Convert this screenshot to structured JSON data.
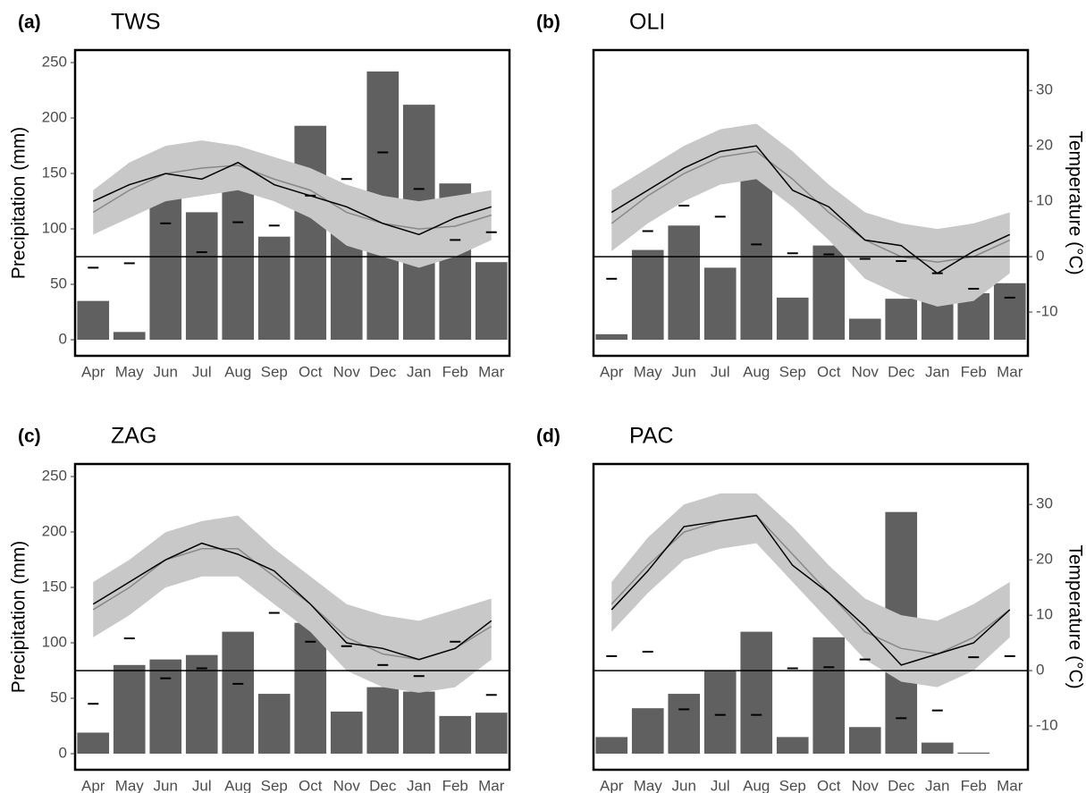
{
  "chart_data": [
    {
      "type": "bar",
      "panel_label": "(a)",
      "title": "TWS",
      "ylabel": "Precipitation (mm)",
      "categories": [
        "Apr",
        "May",
        "Jun",
        "Jul",
        "Aug",
        "Sep",
        "Oct",
        "Nov",
        "Dec",
        "Jan",
        "Feb",
        "Mar"
      ],
      "ylim": [
        -14.5,
        261.3
      ],
      "yticks": [
        0,
        50,
        100,
        150,
        200,
        250
      ],
      "y2lim": [
        -17.9,
        37.3
      ],
      "zero_line_y2": 0,
      "series": [
        {
          "type": "bar",
          "color": "#606060",
          "values": [
            35,
            7,
            150,
            115,
            150,
            93,
            193,
            110,
            242,
            212,
            141,
            70
          ]
        },
        {
          "type": "band",
          "axis": "y2",
          "color": "#c8c8c8",
          "lower": [
            4,
            7,
            10,
            11,
            12,
            10,
            7,
            2,
            0,
            -2,
            0,
            3
          ],
          "upper": [
            12,
            17,
            20,
            21,
            20,
            18,
            16,
            13,
            11,
            10,
            11,
            12
          ]
        },
        {
          "type": "line",
          "axis": "y2",
          "color": "#888888",
          "values": [
            8,
            12,
            15,
            16,
            16.5,
            14,
            12,
            8,
            6,
            5,
            5.5,
            7.5
          ]
        },
        {
          "type": "line",
          "axis": "y2",
          "color": "#000000",
          "values": [
            10,
            13,
            15,
            14,
            17,
            13,
            11,
            9,
            6,
            4,
            7,
            9
          ]
        },
        {
          "type": "dash",
          "color": "#000000",
          "values": [
            65,
            69,
            105,
            79,
            106,
            103,
            130,
            145,
            169,
            136,
            90,
            97
          ]
        }
      ]
    },
    {
      "type": "bar",
      "panel_label": "(b)",
      "title": "OLI",
      "y2label": "Temperature (°C)",
      "categories": [
        "Apr",
        "May",
        "Jun",
        "Jul",
        "Aug",
        "Sep",
        "Oct",
        "Nov",
        "Dec",
        "Jan",
        "Feb",
        "Mar"
      ],
      "ylim": [
        -14.5,
        261.3
      ],
      "y2lim": [
        -17.9,
        37.3
      ],
      "y2ticks": [
        -10,
        0,
        10,
        20,
        30
      ],
      "zero_line_y2": 0,
      "series": [
        {
          "type": "bar",
          "color": "#606060",
          "values": [
            5,
            81,
            103,
            65,
            145,
            38,
            85,
            19,
            37,
            48,
            42,
            51
          ]
        },
        {
          "type": "band",
          "axis": "y2",
          "color": "#c8c8c8",
          "lower": [
            1,
            6,
            10,
            13,
            14,
            9,
            3,
            -4,
            -7,
            -9,
            -8,
            -3
          ],
          "upper": [
            12,
            16,
            20,
            23,
            24,
            19,
            13,
            8,
            6,
            5,
            6,
            8
          ]
        },
        {
          "type": "line",
          "axis": "y2",
          "color": "#888888",
          "values": [
            6,
            11,
            15,
            18,
            19,
            14,
            8,
            3,
            0,
            -1,
            0,
            3
          ]
        },
        {
          "type": "line",
          "axis": "y2",
          "color": "#000000",
          "values": [
            8,
            12,
            16,
            19,
            20,
            12,
            9,
            3,
            2,
            -3,
            1,
            4
          ]
        },
        {
          "type": "dash",
          "color": "#000000",
          "values": [
            55,
            98,
            121,
            111,
            86,
            78,
            77,
            73,
            71,
            60,
            46,
            38
          ]
        }
      ]
    },
    {
      "type": "bar",
      "panel_label": "(c)",
      "title": "ZAG",
      "ylabel": "Precipitation (mm)",
      "categories": [
        "Apr",
        "May",
        "Jun",
        "Jul",
        "Aug",
        "Sep",
        "Oct",
        "Nov",
        "Dec",
        "Jan",
        "Feb",
        "Mar"
      ],
      "ylim": [
        -14.5,
        261.3
      ],
      "yticks": [
        0,
        50,
        100,
        150,
        200,
        250
      ],
      "y2lim": [
        -17.9,
        37.3
      ],
      "zero_line_y2": 0,
      "series": [
        {
          "type": "bar",
          "color": "#606060",
          "values": [
            19,
            80,
            85,
            89,
            110,
            54,
            118,
            38,
            60,
            56,
            34,
            37
          ]
        },
        {
          "type": "band",
          "axis": "y2",
          "color": "#c8c8c8",
          "lower": [
            6,
            10,
            15,
            17,
            17,
            12,
            7,
            0,
            -3,
            -4,
            -3,
            2
          ],
          "upper": [
            16,
            20,
            25,
            27,
            28,
            22,
            17,
            12,
            10,
            9,
            11,
            13
          ]
        },
        {
          "type": "line",
          "axis": "y2",
          "color": "#888888",
          "values": [
            11,
            15,
            20,
            22,
            22,
            17,
            12,
            6,
            3,
            2,
            4,
            8
          ]
        },
        {
          "type": "line",
          "axis": "y2",
          "color": "#000000",
          "values": [
            12,
            16,
            20,
            23,
            21,
            18,
            12,
            5,
            4,
            2,
            4,
            9
          ]
        },
        {
          "type": "dash",
          "color": "#000000",
          "values": [
            45,
            104,
            68,
            77,
            63,
            127,
            101,
            97,
            80,
            70,
            101,
            53
          ]
        }
      ]
    },
    {
      "type": "bar",
      "panel_label": "(d)",
      "title": "PAC",
      "y2label": "Temperature (°C)",
      "categories": [
        "Apr",
        "May",
        "Jun",
        "Jul",
        "Aug",
        "Sep",
        "Oct",
        "Nov",
        "Dec",
        "Jan",
        "Feb",
        "Mar"
      ],
      "ylim": [
        -14.5,
        261.3
      ],
      "y2lim": [
        -17.9,
        37.3
      ],
      "y2ticks": [
        -10,
        0,
        10,
        20,
        30
      ],
      "zero_line_y2": 0,
      "series": [
        {
          "type": "bar",
          "color": "#606060",
          "values": [
            15,
            41,
            54,
            75,
            110,
            15,
            105,
            24,
            218,
            10,
            1,
            0
          ]
        },
        {
          "type": "band",
          "axis": "y2",
          "color": "#c8c8c8",
          "lower": [
            7,
            14,
            20,
            22,
            23,
            16,
            9,
            2,
            -2,
            -3,
            0,
            6
          ],
          "upper": [
            16,
            24,
            30,
            32,
            32,
            26,
            19,
            13,
            10,
            9,
            12,
            16
          ]
        },
        {
          "type": "line",
          "axis": "y2",
          "color": "#888888",
          "values": [
            12,
            19,
            25,
            27,
            28,
            21,
            14,
            7,
            4,
            3,
            6,
            11
          ]
        },
        {
          "type": "line",
          "axis": "y2",
          "color": "#000000",
          "values": [
            11,
            18,
            26,
            27,
            28,
            19,
            14,
            8,
            1,
            3,
            5,
            11
          ]
        },
        {
          "type": "dash",
          "color": "#000000",
          "values": [
            88,
            92,
            40,
            35,
            35,
            77,
            78,
            85,
            32,
            39,
            87,
            88
          ]
        }
      ]
    }
  ]
}
